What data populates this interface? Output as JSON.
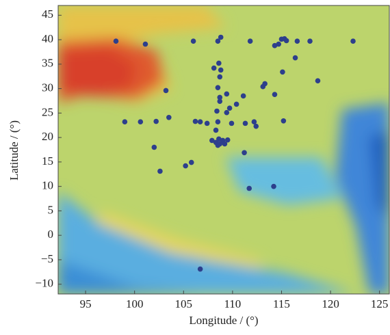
{
  "chart_data": {
    "type": "scatter",
    "x_label": "Longitude / (°)",
    "y_label": "Latitude / (°)",
    "color": "#2d3f8c",
    "x": [
      98.1,
      101.1,
      106.0,
      108.5,
      108.8,
      111.8,
      114.3,
      114.7,
      115.0,
      115.3,
      115.5,
      116.6,
      117.9,
      122.3,
      116.4,
      108.1,
      108.6,
      108.8,
      115.1,
      108.7,
      118.7,
      103.2,
      113.1,
      113.3,
      108.5,
      108.7,
      108.7,
      109.4,
      111.1,
      110.4,
      109.7,
      109.4,
      108.4,
      114.3,
      103.5,
      99.0,
      100.6,
      102.2,
      106.2,
      106.7,
      107.4,
      108.5,
      109.9,
      111.3,
      112.2,
      112.4,
      115.2,
      108.3,
      107.9,
      108.3,
      108.6,
      108.7,
      109.0,
      109.2,
      109.5,
      108.5,
      102.0,
      111.2,
      105.8,
      105.2,
      102.6,
      111.7,
      114.2,
      106.7
    ],
    "values": [
      39.7,
      39.1,
      39.7,
      39.7,
      40.5,
      39.7,
      38.8,
      39.1,
      40.1,
      40.2,
      39.8,
      39.7,
      39.7,
      39.7,
      36.3,
      34.2,
      35.2,
      33.8,
      33.4,
      32.4,
      31.6,
      29.6,
      30.4,
      31.0,
      30.2,
      28.2,
      27.4,
      28.9,
      28.5,
      26.8,
      26.0,
      25.1,
      25.4,
      28.8,
      24.1,
      23.2,
      23.2,
      23.3,
      23.3,
      23.2,
      22.9,
      23.2,
      22.9,
      22.9,
      23.2,
      22.3,
      23.4,
      21.5,
      19.4,
      19.0,
      19.7,
      18.7,
      19.4,
      18.7,
      19.5,
      18.4,
      18.0,
      16.9,
      14.9,
      14.2,
      13.1,
      9.6,
      10.0,
      -6.9
    ],
    "xlim": [
      92.2,
      126.0
    ],
    "ylim": [
      -12,
      47
    ],
    "xticks": [
      95,
      100,
      105,
      110,
      115,
      120,
      125
    ],
    "yticks": [
      {
        "value": -10,
        "label": "−10"
      },
      {
        "value": -5,
        "label": "−5"
      },
      0,
      5,
      10,
      15,
      20,
      25,
      30,
      35,
      40,
      45
    ]
  }
}
